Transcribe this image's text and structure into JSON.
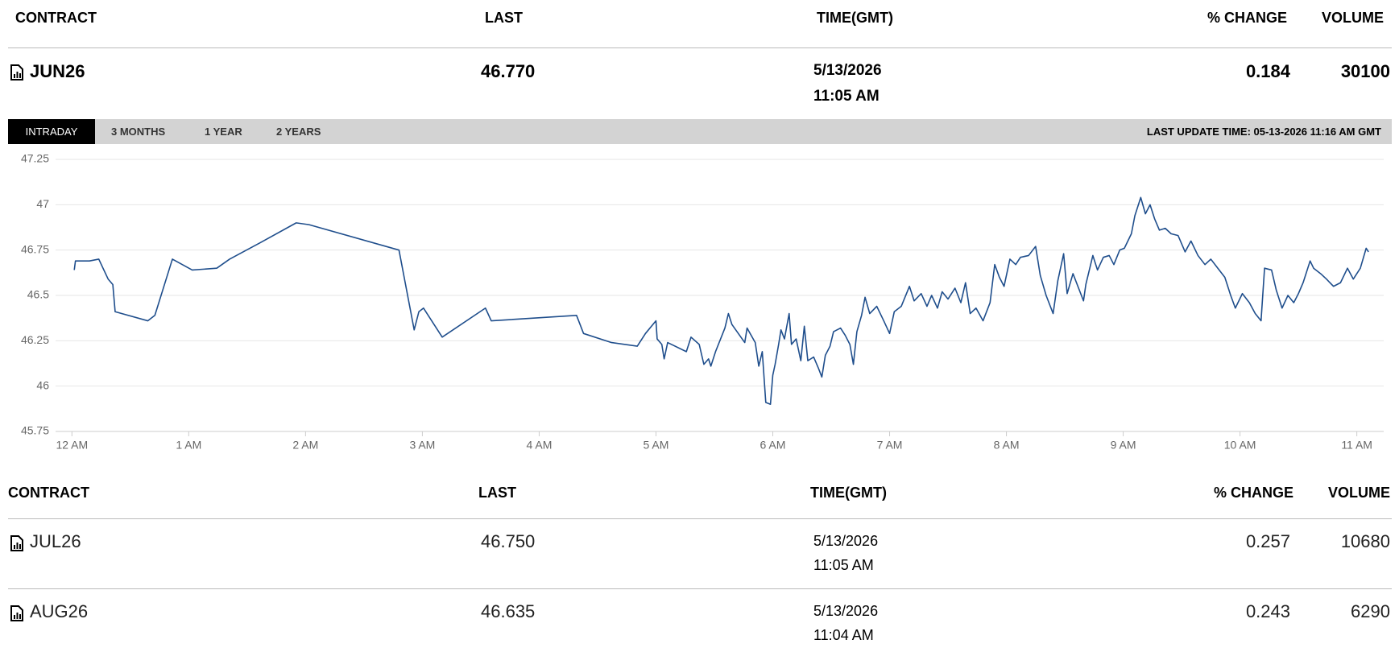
{
  "header": {
    "columns": [
      "CONTRACT",
      "LAST",
      "TIME(GMT)",
      "% CHANGE",
      "VOLUME"
    ]
  },
  "main_row": {
    "contract": "JUN26",
    "last": "46.770",
    "time": [
      "5/13/2026",
      "11:05 AM"
    ],
    "change": "0.184",
    "volume": "30100"
  },
  "tabs": [
    "INTRADAY",
    "3 MONTHS",
    "1 YEAR",
    "2 YEARS"
  ],
  "last_update": "LAST UPDATE TIME: 05-13-2026 11:16 AM GMT",
  "chart_data": {
    "type": "line",
    "color": "#1f4e8c",
    "grid": true,
    "x": [
      0.02,
      0.03,
      0.15,
      0.23,
      0.31,
      0.35,
      0.37,
      0.65,
      0.71,
      0.86,
      1.03,
      1.24,
      1.35,
      1.61,
      1.92,
      2.03,
      2.8,
      2.93,
      2.97,
      3.01,
      3.17,
      3.54,
      3.59,
      4.32,
      4.38,
      4.62,
      4.84,
      4.91,
      5.0,
      5.01,
      5.05,
      5.07,
      5.1,
      5.26,
      5.3,
      5.37,
      5.41,
      5.45,
      5.47,
      5.51,
      5.59,
      5.62,
      5.65,
      5.76,
      5.78,
      5.85,
      5.88,
      5.91,
      5.94,
      5.98,
      6.0,
      6.02,
      6.05,
      6.07,
      6.1,
      6.14,
      6.16,
      6.2,
      6.24,
      6.27,
      6.3,
      6.35,
      6.39,
      6.42,
      6.45,
      6.49,
      6.52,
      6.58,
      6.62,
      6.66,
      6.69,
      6.72,
      6.76,
      6.79,
      6.83,
      6.89,
      6.95,
      7.0,
      7.04,
      7.1,
      7.17,
      7.21,
      7.27,
      7.32,
      7.36,
      7.41,
      7.45,
      7.5,
      7.56,
      7.61,
      7.65,
      7.69,
      7.74,
      7.8,
      7.86,
      7.9,
      7.94,
      7.98,
      8.03,
      8.08,
      8.12,
      8.19,
      8.25,
      8.29,
      8.34,
      8.4,
      8.44,
      8.49,
      8.52,
      8.57,
      8.66,
      8.68,
      8.74,
      8.78,
      8.83,
      8.88,
      8.92,
      8.97,
      9.01,
      9.07,
      9.1,
      9.15,
      9.19,
      9.23,
      9.27,
      9.31,
      9.36,
      9.41,
      9.47,
      9.53,
      9.58,
      9.64,
      9.7,
      9.75,
      9.81,
      9.87,
      9.92,
      9.96,
      10.02,
      10.08,
      10.13,
      10.18,
      10.21,
      10.27,
      10.31,
      10.36,
      10.41,
      10.46,
      10.5,
      10.54,
      10.6,
      10.63,
      10.69,
      10.74,
      10.8,
      10.86,
      10.92,
      10.97,
      11.03,
      11.08,
      11.1
    ],
    "values": [
      46.64,
      46.69,
      46.69,
      46.7,
      46.59,
      46.56,
      46.41,
      46.36,
      46.39,
      46.7,
      46.64,
      46.65,
      46.7,
      46.79,
      46.9,
      46.89,
      46.75,
      46.31,
      46.41,
      46.43,
      46.27,
      46.43,
      46.36,
      46.39,
      46.29,
      46.24,
      46.22,
      46.29,
      46.36,
      46.26,
      46.23,
      46.15,
      46.24,
      46.19,
      46.27,
      46.23,
      46.12,
      46.15,
      46.11,
      46.19,
      46.32,
      46.4,
      46.34,
      46.24,
      46.32,
      46.24,
      46.11,
      46.19,
      45.91,
      45.9,
      46.06,
      46.12,
      46.23,
      46.31,
      46.26,
      46.4,
      46.23,
      46.26,
      46.14,
      46.33,
      46.14,
      46.16,
      46.1,
      46.05,
      46.17,
      46.22,
      46.3,
      46.32,
      46.28,
      46.23,
      46.12,
      46.3,
      46.39,
      46.49,
      46.4,
      46.44,
      46.36,
      46.29,
      46.41,
      46.44,
      46.55,
      46.47,
      46.51,
      46.44,
      46.5,
      46.43,
      46.52,
      46.48,
      46.54,
      46.46,
      46.57,
      46.4,
      46.43,
      46.36,
      46.46,
      46.67,
      46.6,
      46.55,
      46.7,
      46.67,
      46.71,
      46.72,
      46.77,
      46.61,
      46.5,
      46.4,
      46.58,
      46.73,
      46.51,
      46.62,
      46.47,
      46.56,
      46.72,
      46.64,
      46.71,
      46.72,
      46.67,
      46.75,
      46.76,
      46.84,
      46.94,
      47.04,
      46.95,
      47.0,
      46.92,
      46.86,
      46.87,
      46.84,
      46.83,
      46.74,
      46.8,
      46.72,
      46.67,
      46.7,
      46.65,
      46.6,
      46.5,
      46.43,
      46.51,
      46.46,
      46.4,
      46.36,
      46.65,
      46.64,
      46.53,
      46.43,
      46.5,
      46.46,
      46.51,
      46.57,
      46.69,
      46.65,
      46.62,
      46.59,
      46.55,
      46.57,
      46.65,
      46.59,
      46.65,
      46.76,
      46.74
    ],
    "xlim": [
      -0.14,
      11.23
    ],
    "ylim": [
      45.75,
      47.25
    ],
    "xticks": [
      {
        "value": 0,
        "label": "12 AM"
      },
      {
        "value": 1,
        "label": "1 AM"
      },
      {
        "value": 2,
        "label": "2 AM"
      },
      {
        "value": 3,
        "label": "3 AM"
      },
      {
        "value": 4,
        "label": "4 AM"
      },
      {
        "value": 5,
        "label": "5 AM"
      },
      {
        "value": 6,
        "label": "6 AM"
      },
      {
        "value": 7,
        "label": "7 AM"
      },
      {
        "value": 8,
        "label": "8 AM"
      },
      {
        "value": 9,
        "label": "9 AM"
      },
      {
        "value": 10,
        "label": "10 AM"
      },
      {
        "value": 11,
        "label": "11 AM"
      }
    ],
    "yticks": [
      45.75,
      46,
      46.25,
      46.5,
      46.75,
      47,
      47.25
    ]
  },
  "table": {
    "columns": [
      "CONTRACT",
      "LAST",
      "TIME(GMT)",
      "% CHANGE",
      "VOLUME"
    ],
    "rows": [
      {
        "contract": "JUL26",
        "last": "46.750",
        "time": [
          "5/13/2026",
          "11:05 AM"
        ],
        "change": "0.257",
        "volume": "10680"
      },
      {
        "contract": "AUG26",
        "last": "46.635",
        "time": [
          "5/13/2026",
          "11:04 AM"
        ],
        "change": "0.243",
        "volume": "6290"
      }
    ]
  }
}
